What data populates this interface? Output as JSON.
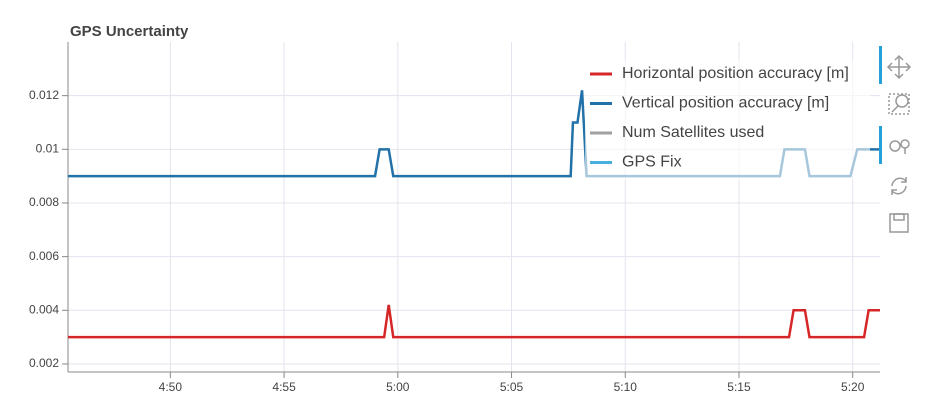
{
  "chart_data": {
    "type": "line",
    "title": "GPS Uncertainty",
    "xlim": [
      285.5,
      321.2
    ],
    "ylim": [
      0.0017,
      0.014
    ],
    "xticks": [
      {
        "value": 290,
        "label": "4:50"
      },
      {
        "value": 295,
        "label": "4:55"
      },
      {
        "value": 300,
        "label": "5:00"
      },
      {
        "value": 305,
        "label": "5:05"
      },
      {
        "value": 310,
        "label": "5:10"
      },
      {
        "value": 315,
        "label": "5:15"
      },
      {
        "value": 320,
        "label": "5:20"
      }
    ],
    "yticks": [
      0.002,
      0.004,
      0.006,
      0.008,
      0.01,
      0.012
    ],
    "grid": true,
    "legend": "top-right",
    "series": [
      {
        "name": "Horizontal position accuracy [m]",
        "color": "#d62728",
        "x": [
          285.5,
          299.4,
          299.6,
          299.8,
          317.2,
          317.4,
          317.9,
          318.1,
          320.5,
          320.7,
          321.2
        ],
        "values": [
          0.003,
          0.003,
          0.0042,
          0.003,
          0.003,
          0.004,
          0.004,
          0.003,
          0.003,
          0.004,
          0.004
        ]
      },
      {
        "name": "Vertical position accuracy [m]",
        "color": "#2271a8",
        "x": [
          285.5,
          299.0,
          299.2,
          299.6,
          299.8,
          307.6,
          307.7,
          307.9,
          308.1,
          308.3,
          316.8,
          317.0,
          317.9,
          318.1,
          319.9,
          320.2,
          321.2
        ],
        "values": [
          0.009,
          0.009,
          0.01,
          0.01,
          0.009,
          0.009,
          0.011,
          0.011,
          0.0122,
          0.009,
          0.009,
          0.01,
          0.01,
          0.009,
          0.009,
          0.01,
          0.01
        ]
      },
      {
        "name": "Num Satellites used",
        "color": "#a0a0a0"
      },
      {
        "name": "GPS Fix",
        "color": "#49aee0"
      }
    ]
  }
}
